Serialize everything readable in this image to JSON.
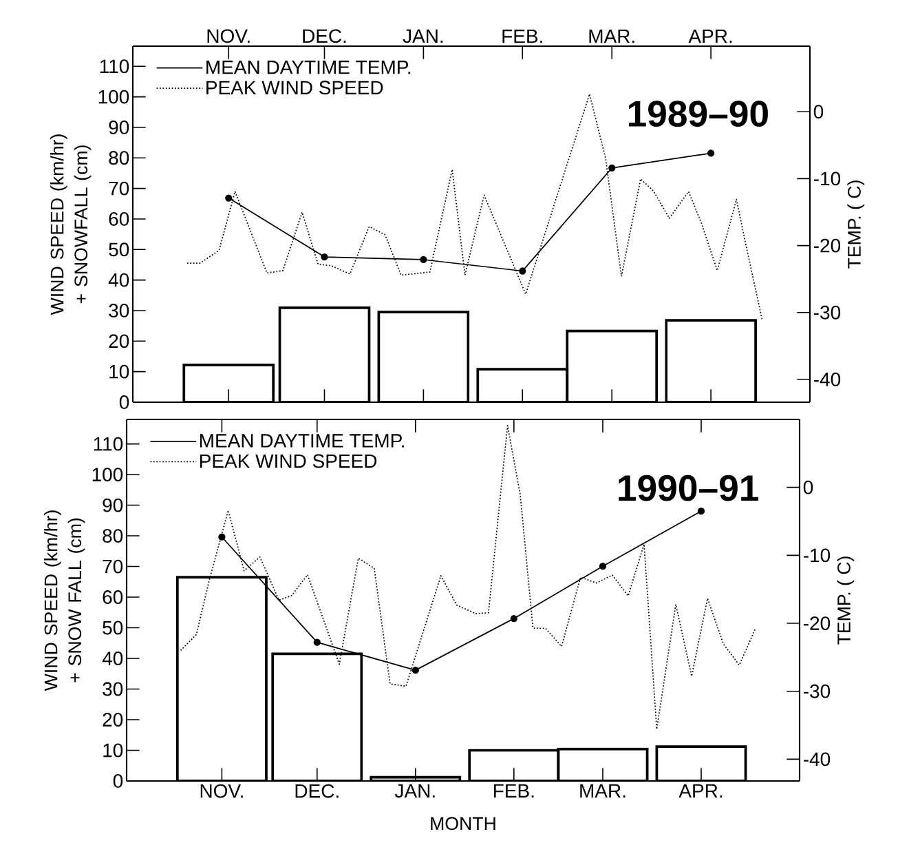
{
  "chart_data": [
    {
      "type": "bar",
      "ylabel": "WIND SPEED (km/hr) + SNOWFALL (cm)",
      "y2label": "TEMP. ( C)",
      "annotations": [
        "1989–90"
      ],
      "xlim": [
        "1989-10-16",
        "1990-05-16"
      ],
      "xticks": [
        {
          "value": "1989-11-15",
          "label": "NOV."
        },
        {
          "value": "1989-12-15",
          "label": "DEC."
        },
        {
          "value": "1990-01-15",
          "label": "JAN."
        },
        {
          "value": "1990-02-15",
          "label": "FEB."
        },
        {
          "value": "1990-03-15",
          "label": "MAR."
        },
        {
          "value": "1990-04-15",
          "label": "APR."
        }
      ],
      "ylim": [
        0,
        116.6
      ],
      "yticks": [
        0,
        10,
        20,
        30,
        40,
        50,
        60,
        70,
        80,
        90,
        100,
        110
      ],
      "y2lim": [
        -43.4,
        9.8
      ],
      "y2ticks": [
        -40,
        -30,
        -20,
        -10,
        0
      ],
      "legend": "top left",
      "series": [
        {
          "color": "#000000",
          "x": [
            "1989-11-15",
            "1989-12-15",
            "1990-01-15",
            "1990-02-15",
            "1990-03-15",
            "1990-04-15"
          ],
          "values": [
            12.2,
            30.9,
            29.5,
            10.8,
            23.3,
            26.8
          ]
        },
        {
          "type": "line",
          "name": "MEAN DAYTIME TEMP.",
          "axis": "y2",
          "color": "#000000",
          "marker": "circle",
          "line_style": "solid",
          "x": [
            "1989-11-15",
            "1989-12-15",
            "1990-01-15",
            "1990-02-15",
            "1990-03-15",
            "1990-04-15"
          ],
          "values": [
            -12.9,
            -21.7,
            -22.1,
            -23.8,
            -8.4,
            -6.2
          ]
        },
        {
          "type": "line",
          "name": "PEAK WIND SPEED",
          "color": "#000000",
          "marker": "none",
          "line_style": "dotted",
          "x": [
            "1989-11-02",
            "1989-11-06",
            "1989-11-12",
            "1989-11-17",
            "1989-11-27",
            "1989-12-02",
            "1989-12-08",
            "1989-12-13",
            "1989-12-17",
            "1989-12-23",
            "1989-12-29",
            "1990-01-03",
            "1990-01-08",
            "1990-01-17",
            "1990-01-24",
            "1990-01-28",
            "1990-02-03",
            "1990-02-16",
            "1990-03-08",
            "1990-03-13",
            "1990-03-18",
            "1990-03-24",
            "1990-03-28",
            "1990-04-02",
            "1990-04-08",
            "1990-04-12",
            "1990-04-17",
            "1990-04-23",
            "1990-04-26",
            "1990-05-01"
          ],
          "values": [
            45.5,
            45.5,
            49.7,
            69,
            42.3,
            43.1,
            62.2,
            45.2,
            44.7,
            42,
            57.5,
            54.8,
            41.6,
            42.6,
            76.2,
            41.6,
            67.8,
            35.4,
            100.9,
            80,
            41.2,
            73.1,
            69.2,
            60.2,
            69,
            58.7,
            43.1,
            66.4,
            51.3,
            27.2
          ]
        }
      ]
    },
    {
      "type": "bar",
      "xlabel": "MONTH",
      "ylabel": "WIND SPEED (km/hr) + SNOW FALL (cm)",
      "y2label": "TEMP. ( C)",
      "annotations": [
        "1990–91"
      ],
      "xlim": [
        "1990-10-16",
        "1991-05-16"
      ],
      "xticks": [
        {
          "value": "1990-11-15",
          "label": "NOV."
        },
        {
          "value": "1990-12-15",
          "label": "DEC."
        },
        {
          "value": "1991-01-15",
          "label": "JAN."
        },
        {
          "value": "1991-02-15",
          "label": "FEB."
        },
        {
          "value": "1991-03-15",
          "label": "MAR."
        },
        {
          "value": "1991-04-15",
          "label": "APR."
        }
      ],
      "ylim": [
        0,
        118
      ],
      "yticks": [
        0,
        10,
        20,
        30,
        40,
        50,
        60,
        70,
        80,
        90,
        100,
        110
      ],
      "y2lim": [
        -43.2,
        10
      ],
      "y2ticks": [
        -40,
        -30,
        -20,
        -10,
        0
      ],
      "legend": "top left",
      "series": [
        {
          "color": "#000000",
          "x": [
            "1990-11-15",
            "1990-12-15",
            "1991-01-15",
            "1991-02-15",
            "1991-03-15",
            "1991-04-15"
          ],
          "values": [
            66.5,
            41.5,
            1.2,
            10.0,
            10.4,
            11.2
          ]
        },
        {
          "type": "line",
          "name": "MEAN DAYTIME TEMP.",
          "axis": "y2",
          "color": "#000000",
          "marker": "circle",
          "line_style": "solid",
          "x": [
            "1990-11-15",
            "1990-12-15",
            "1991-01-15",
            "1991-02-15",
            "1991-03-15",
            "1991-04-15"
          ],
          "values": [
            -7.3,
            -22.8,
            -26.9,
            -19.3,
            -11.6,
            -3.5
          ]
        },
        {
          "type": "line",
          "name": "PEAK WIND SPEED",
          "color": "#000000",
          "marker": "none",
          "line_style": "dotted",
          "x": [
            "1990-11-02",
            "1990-11-07",
            "1990-11-11",
            "1990-11-17",
            "1990-11-22",
            "1990-11-27",
            "1990-12-03",
            "1990-12-07",
            "1990-12-12",
            "1990-12-22",
            "1990-12-28",
            "1991-01-02",
            "1991-01-07",
            "1991-01-12",
            "1991-01-23",
            "1991-01-28",
            "1991-02-03",
            "1991-02-07",
            "1991-02-13",
            "1991-02-17",
            "1991-02-21",
            "1991-02-25",
            "1991-03-02",
            "1991-03-08",
            "1991-03-13",
            "1991-03-18",
            "1991-03-23",
            "1991-03-28",
            "1991-04-01",
            "1991-04-07",
            "1991-04-12",
            "1991-04-17",
            "1991-04-22",
            "1991-04-27",
            "1991-05-02"
          ],
          "values": [
            42.6,
            47.8,
            65.4,
            88.3,
            68.6,
            73.1,
            59,
            60.5,
            67.3,
            38.1,
            72.7,
            69.4,
            31.7,
            30.9,
            67,
            57.4,
            54.6,
            54.9,
            116,
            93.4,
            49.9,
            49.8,
            43.9,
            66.5,
            64.6,
            67.2,
            60.4,
            77.3,
            16.9,
            57.6,
            34.2,
            59.6,
            44.7,
            37.8,
            49.5
          ]
        }
      ]
    }
  ]
}
